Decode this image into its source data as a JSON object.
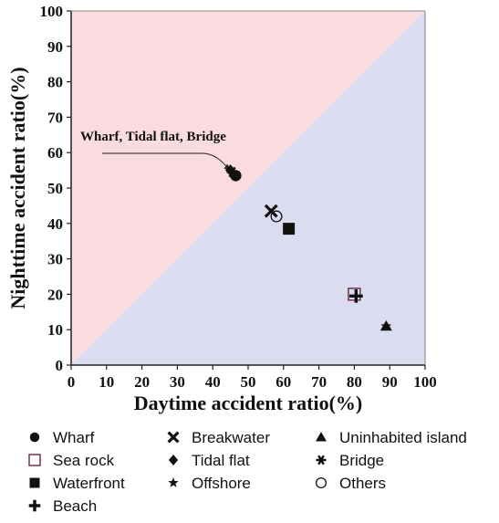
{
  "chart_data": {
    "type": "scatter",
    "xlabel": "Daytime accident ratio(%)",
    "ylabel": "Nighttime accident ratio(%)",
    "xlim": [
      0,
      100
    ],
    "ylim": [
      0,
      100
    ],
    "xticks": [
      "0",
      "10",
      "20",
      "30",
      "40",
      "50",
      "60",
      "70",
      "80",
      "90",
      "100"
    ],
    "yticks": [
      "0",
      "10",
      "20",
      "30",
      "40",
      "50",
      "60",
      "70",
      "80",
      "90",
      "100"
    ],
    "grid": false,
    "regions": [
      {
        "side": "upper-left",
        "color": "#fadbe0"
      },
      {
        "side": "lower-right",
        "color": "#dcdcf0"
      }
    ],
    "annotation": {
      "text": "Wharf, Tidal flat, Bridge",
      "points_to": [
        46,
        54
      ]
    },
    "series": [
      {
        "name": "Wharf",
        "marker": "circle",
        "x": 46.5,
        "y": 53.5
      },
      {
        "name": "Sea rock",
        "marker": "square-open",
        "x": 80,
        "y": 20
      },
      {
        "name": "Waterfront",
        "marker": "square",
        "x": 61.5,
        "y": 38.5
      },
      {
        "name": "Beach",
        "marker": "plus",
        "x": 80.5,
        "y": 19.5
      },
      {
        "name": "Breakwater",
        "marker": "x",
        "x": 56.5,
        "y": 43.5
      },
      {
        "name": "Tidal flat",
        "marker": "diamond",
        "x": 45,
        "y": 55
      },
      {
        "name": "Offshore",
        "marker": "star",
        "x": 89,
        "y": 11
      },
      {
        "name": "Uninhabited island",
        "marker": "triangle",
        "x": 89,
        "y": 11
      },
      {
        "name": "Bridge",
        "marker": "asterisk",
        "x": 45.5,
        "y": 54.5
      },
      {
        "name": "Others",
        "marker": "circle-open",
        "x": 58,
        "y": 42
      }
    ],
    "legend": {
      "placement": "bottom",
      "columns": [
        [
          "Wharf",
          "Sea rock",
          "Waterfront",
          "Beach"
        ],
        [
          "Breakwater",
          "Tidal flat",
          "Offshore"
        ],
        [
          "Uninhabited island",
          "Bridge",
          "Others"
        ]
      ]
    }
  }
}
